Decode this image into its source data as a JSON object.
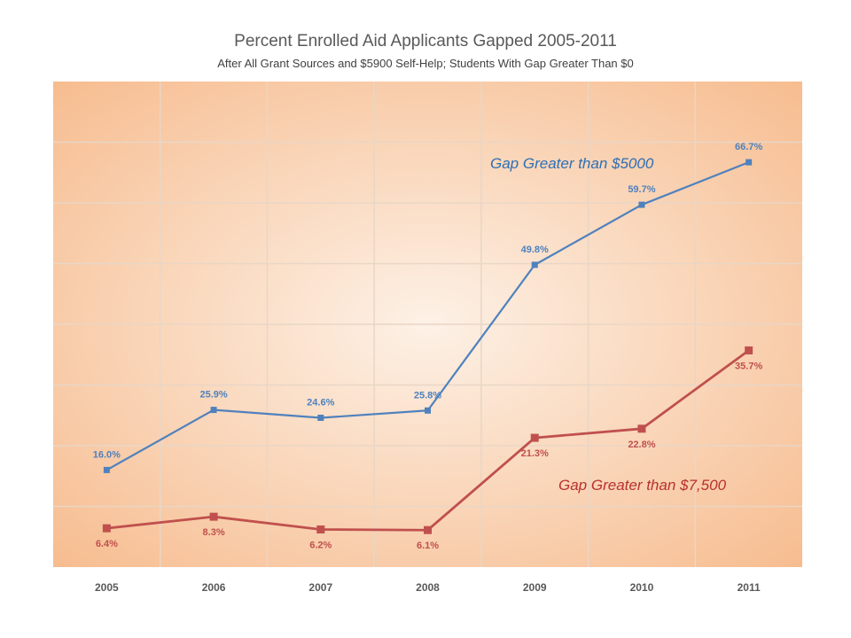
{
  "chart_data": {
    "type": "line",
    "title": "Percent Enrolled Aid Applicants Gapped 2005-2011",
    "subtitle": "After All Grant Sources and $5900 Self-Help; Students With Gap Greater Than $0",
    "categories": [
      "2005",
      "2006",
      "2007",
      "2008",
      "2009",
      "2010",
      "2011"
    ],
    "series": [
      {
        "name": "Gap Greater than $5000",
        "values": [
          16.0,
          25.9,
          24.6,
          25.8,
          49.8,
          59.7,
          66.7
        ],
        "labels": [
          "16.0%",
          "25.9%",
          "24.6%",
          "25.8%",
          "49.8%",
          "59.7%",
          "66.7%"
        ],
        "color": "#4f81bd"
      },
      {
        "name": "Gap Greater than $7,500",
        "values": [
          6.4,
          8.3,
          6.2,
          6.1,
          21.3,
          22.8,
          35.7
        ],
        "labels": [
          "6.4%",
          "8.3%",
          "6.2%",
          "6.1%",
          "21.3%",
          "22.8%",
          "35.7%"
        ],
        "color": "#c0504d"
      }
    ],
    "ylim": [
      0,
      80
    ],
    "grid": true,
    "legend": "inline labels",
    "background": [
      "#fdf1e6",
      "#f6b98a"
    ]
  }
}
